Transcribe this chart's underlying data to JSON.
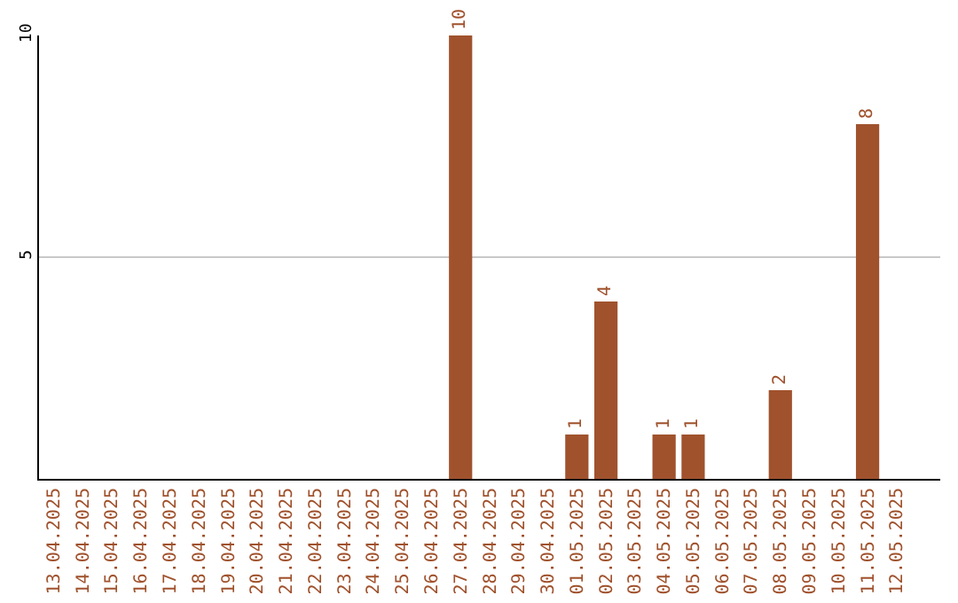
{
  "chart_data": {
    "type": "bar",
    "categories": [
      "13.04.2025",
      "14.04.2025",
      "15.04.2025",
      "16.04.2025",
      "17.04.2025",
      "18.04.2025",
      "19.04.2025",
      "20.04.2025",
      "21.04.2025",
      "22.04.2025",
      "23.04.2025",
      "24.04.2025",
      "25.04.2025",
      "26.04.2025",
      "27.04.2025",
      "28.04.2025",
      "29.04.2025",
      "30.04.2025",
      "01.05.2025",
      "02.05.2025",
      "03.05.2025",
      "04.05.2025",
      "05.05.2025",
      "06.05.2025",
      "07.05.2025",
      "08.05.2025",
      "09.05.2025",
      "10.05.2025",
      "11.05.2025",
      "12.05.2025"
    ],
    "values": [
      0,
      0,
      0,
      0,
      0,
      0,
      0,
      0,
      0,
      0,
      0,
      0,
      0,
      0,
      10,
      0,
      0,
      0,
      1,
      4,
      0,
      1,
      1,
      0,
      0,
      2,
      0,
      0,
      8,
      0
    ],
    "value_labels": [
      null,
      null,
      null,
      null,
      null,
      null,
      null,
      null,
      null,
      null,
      null,
      null,
      null,
      null,
      "10",
      null,
      null,
      null,
      "1",
      "4",
      null,
      "1",
      "1",
      null,
      null,
      "2",
      null,
      null,
      "8",
      null
    ],
    "color": "#a0522d",
    "ylim": [
      0,
      10
    ],
    "yticks": [
      5,
      10
    ],
    "grid": "y",
    "legend": false
  }
}
